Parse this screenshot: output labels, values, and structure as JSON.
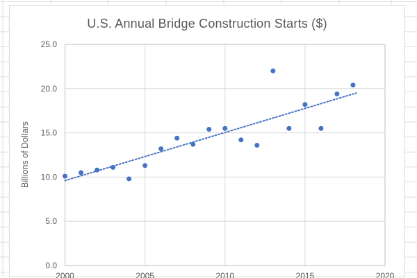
{
  "chart": {
    "title": "U.S. Annual Bridge Construction Starts ($)",
    "y_axis_title": "Billions of Dollars"
  },
  "colors": {
    "marker_blue": "#4472C4",
    "text_gray": "#595959",
    "gridline_gray": "#D9D9D9",
    "axis_line_gray": "#BFBFBF",
    "sheet_grid_gray": "#DCDCDC"
  },
  "chart_data": {
    "type": "scatter",
    "title": "U.S. Annual Bridge Construction Starts ($)",
    "xlabel": "",
    "ylabel": "Billions of Dollars",
    "x": [
      2000,
      2001,
      2002,
      2003,
      2004,
      2005,
      2006,
      2007,
      2008,
      2009,
      2010,
      2011,
      2012,
      2013,
      2014,
      2015,
      2016,
      2017,
      2018
    ],
    "y": [
      10.1,
      10.5,
      10.8,
      11.1,
      9.8,
      11.3,
      13.2,
      14.4,
      13.7,
      15.4,
      15.5,
      14.2,
      13.6,
      22.0,
      15.5,
      18.2,
      15.5,
      19.4,
      20.4
    ],
    "xlim": [
      2000,
      2020
    ],
    "ylim": [
      0,
      25
    ],
    "x_tick_values": [
      2000,
      2005,
      2010,
      2015,
      2020
    ],
    "x_tick_labels": [
      "2000",
      "2005",
      "2010",
      "2015",
      "2020"
    ],
    "y_tick_values": [
      0,
      5,
      10,
      15,
      20,
      25
    ],
    "y_tick_labels": [
      "0.0",
      "5.0",
      "10.0",
      "15.0",
      "20.0",
      "25.0"
    ],
    "grid": true,
    "legend": false,
    "marker_color": "#4472C4",
    "trendline": {
      "type": "linear",
      "style": "dotted",
      "color": "#4472C4",
      "x_start": 2000,
      "y_start": 9.6,
      "x_end": 2018.2,
      "y_end": 19.5
    }
  }
}
